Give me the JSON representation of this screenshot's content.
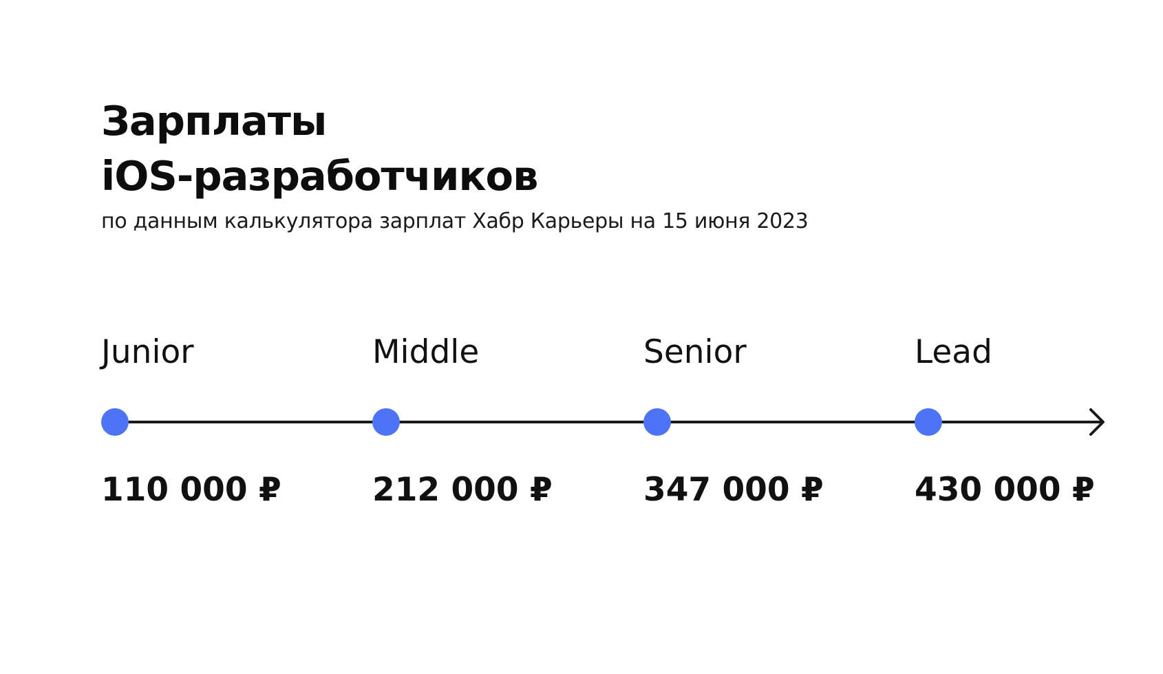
{
  "title_line1": "Зарплаты",
  "title_line2": "iOS-разработчиков",
  "subtitle": "по данным калькулятора зарплат Хабр Карьеры на 15 июня 2023",
  "colors": {
    "dot": "#4D74F6",
    "line": "#1A1A1A",
    "text": "#111111"
  },
  "chart_data": {
    "type": "timeline",
    "categories": [
      "Junior",
      "Middle",
      "Senior",
      "Lead"
    ],
    "values": [
      110000,
      212000,
      347000,
      430000
    ],
    "value_labels": [
      "110 000 ₽",
      "212 000 ₽",
      "347 000 ₽",
      "430 000 ₽"
    ],
    "title": "Зарплаты iOS-разработчиков",
    "subtitle": "по данным калькулятора зарплат Хабр Карьеры на 15 июня 2023",
    "grid": false
  }
}
